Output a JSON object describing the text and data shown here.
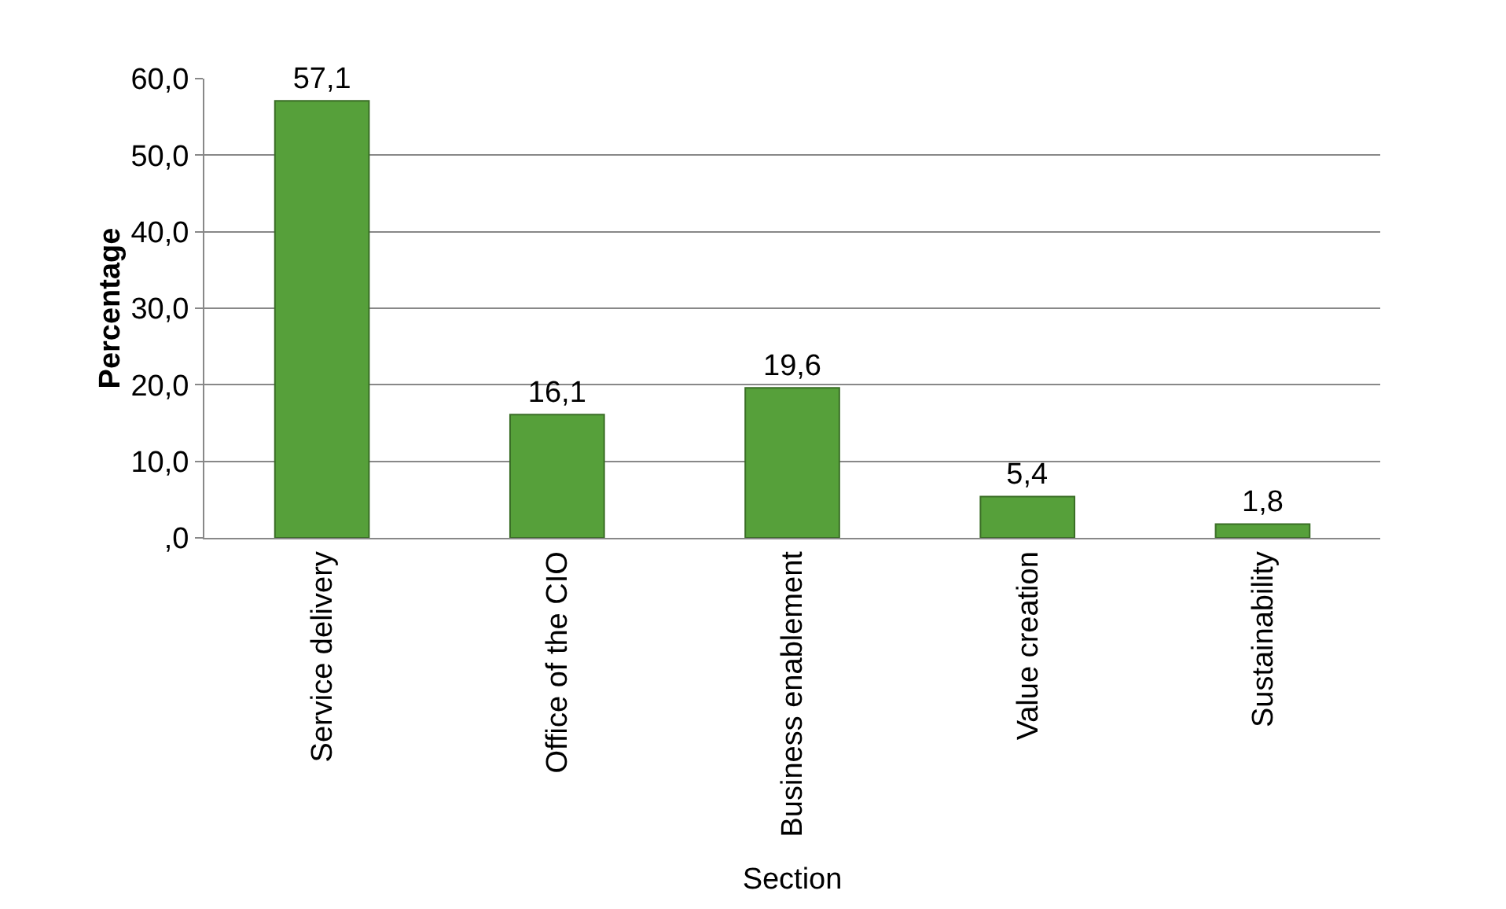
{
  "chart_data": {
    "type": "bar",
    "xlabel": "Section",
    "ylabel": "Percentage",
    "categories": [
      "Service delivery",
      "Office of the CIO",
      "Business enablement",
      "Value creation",
      "Sustainability"
    ],
    "values": [
      57.1,
      16.1,
      19.6,
      5.4,
      1.8
    ],
    "value_labels": [
      "57,1",
      "16,1",
      "19,6",
      "5,4",
      "1,8"
    ],
    "color": "#56a03a",
    "ylim": [
      0,
      60
    ],
    "yticks": [
      {
        "value": 0,
        "label": ",0"
      },
      {
        "value": 10,
        "label": "10,0"
      },
      {
        "value": 20,
        "label": "20,0"
      },
      {
        "value": 30,
        "label": "30,0"
      },
      {
        "value": 40,
        "label": "40,0"
      },
      {
        "value": 50,
        "label": "50,0"
      },
      {
        "value": 60,
        "label": "60,0"
      }
    ],
    "grid": "y"
  }
}
